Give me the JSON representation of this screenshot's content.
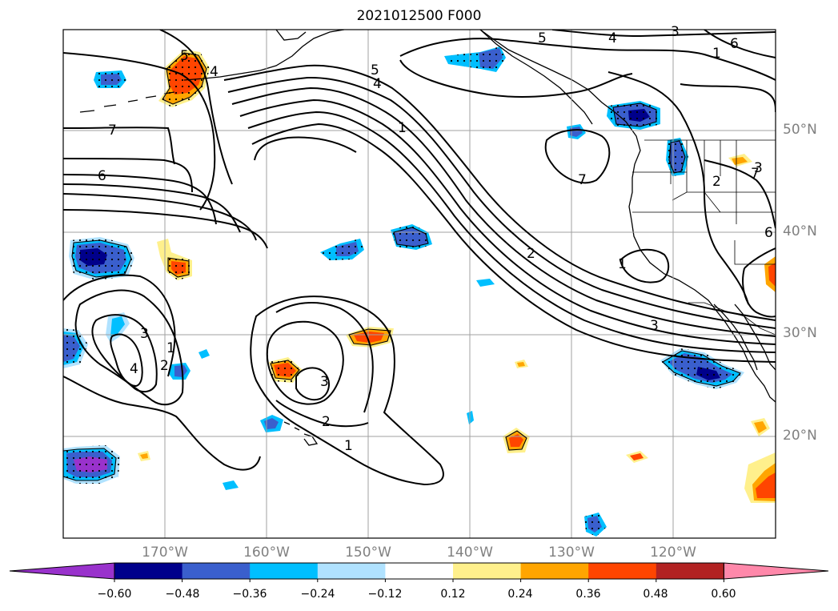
{
  "title": "2021012500 F000",
  "latitude_labels": [
    "50°N",
    "40°N",
    "30°N",
    "20°N"
  ],
  "longitude_labels": [
    "170°W",
    "160°W",
    "150°W",
    "140°W",
    "130°W",
    "120°W"
  ],
  "colorbar": {
    "ticks": [
      "−0.60",
      "−0.48",
      "−0.36",
      "−0.24",
      "−0.12",
      "0.12",
      "0.24",
      "0.36",
      "0.48",
      "0.60"
    ],
    "colors": [
      "#9932cc",
      "#00008b",
      "#3a5fcd",
      "#00bfff",
      "#b0e2ff",
      "#ffffff",
      "#fff08c",
      "#ffa500",
      "#ff4500",
      "#b22222",
      "#ff88aa"
    ]
  },
  "contour_labels": [
    "5",
    "4",
    "4",
    "5",
    "6",
    "7",
    "7",
    "6",
    "5",
    "4",
    "1",
    "2",
    "3",
    "1",
    "7",
    "1",
    "2",
    "3",
    "4",
    "3",
    "1",
    "2",
    "3",
    "2",
    "1",
    "3",
    "6"
  ],
  "shading_colors": {
    "negative": [
      "#b0e2ff",
      "#00bfff",
      "#3a5fcd",
      "#00008b",
      "#9932cc"
    ],
    "positive": [
      "#fff08c",
      "#ffa500",
      "#ff4500",
      "#b22222"
    ]
  }
}
